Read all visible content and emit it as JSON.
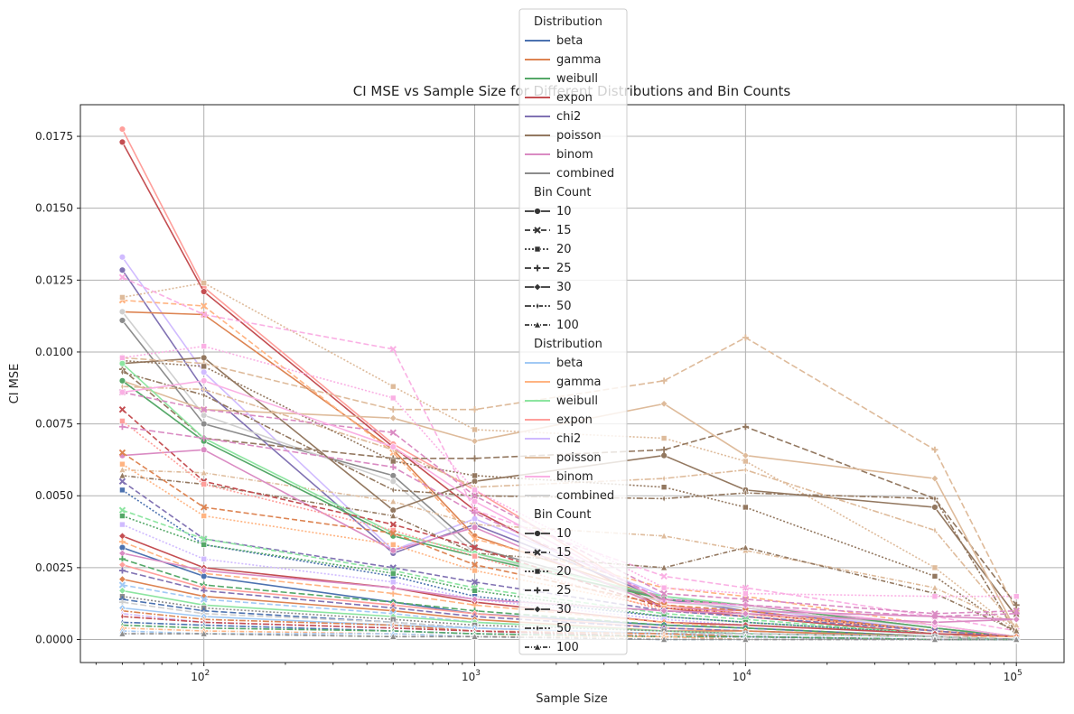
{
  "chart_data": {
    "type": "line",
    "title": "CI MSE vs Sample Size for Different Distributions and Bin Counts",
    "xlabel": "Sample Size",
    "ylabel": "CI MSE",
    "x_scale": "log",
    "xlim": [
      35,
      150000
    ],
    "ylim": [
      -0.0008,
      0.0186
    ],
    "grid": true,
    "legend_position": "top-center",
    "x_ticks": [
      {
        "value": 100,
        "label": "10",
        "exp": "2"
      },
      {
        "value": 1000,
        "label": "10",
        "exp": "3"
      },
      {
        "value": 10000,
        "label": "10",
        "exp": "4"
      },
      {
        "value": 100000,
        "label": "10",
        "exp": "5"
      }
    ],
    "y_ticks": [
      {
        "value": 0.0,
        "label": "0.0000"
      },
      {
        "value": 0.0025,
        "label": "0.0025"
      },
      {
        "value": 0.005,
        "label": "0.0050"
      },
      {
        "value": 0.0075,
        "label": "0.0075"
      },
      {
        "value": 0.01,
        "label": "0.0100"
      },
      {
        "value": 0.0125,
        "label": "0.0125"
      },
      {
        "value": 0.015,
        "label": "0.0150"
      },
      {
        "value": 0.0175,
        "label": "0.0175"
      }
    ],
    "x": [
      50,
      100,
      500,
      1000,
      5000,
      10000,
      50000,
      100000
    ],
    "legend": {
      "distribution_title_1": "Distribution",
      "bin_title_1": "Bin Count",
      "distribution_title_2": "Distribution",
      "bin_title_2": "Bin Count",
      "distributions": [
        "beta",
        "gamma",
        "weibull",
        "expon",
        "chi2",
        "poisson",
        "binom",
        "combined"
      ],
      "bin_counts": [
        "10",
        "15",
        "20",
        "25",
        "30",
        "50",
        "100"
      ]
    },
    "palettes": {
      "deep": [
        "#4c72b0",
        "#dd8452",
        "#55a868",
        "#c44e52",
        "#8172b3",
        "#937860",
        "#da8bc3",
        "#8c8c8c"
      ],
      "pastel": [
        "#a1c9f4",
        "#ffb482",
        "#8de5a1",
        "#ff9f9b",
        "#d0bbff",
        "#debb9b",
        "#fab0e4",
        "#cfcfcf"
      ]
    },
    "series": [
      {
        "distribution": "expon",
        "palette": "pastel",
        "bins": "10",
        "values": [
          0.01775,
          0.01225,
          0.0068,
          0.0052,
          0.0012,
          0.0009,
          0.0003,
          0.0001
        ]
      },
      {
        "distribution": "expon",
        "palette": "deep",
        "bins": "10",
        "values": [
          0.0173,
          0.0121,
          0.0067,
          0.0045,
          0.0011,
          0.0008,
          0.0002,
          0.0001
        ]
      },
      {
        "distribution": "chi2",
        "palette": "pastel",
        "bins": "10",
        "values": [
          0.0133,
          0.0093,
          0.0031,
          0.0042,
          0.0015,
          0.0011,
          0.0003,
          0.0001
        ]
      },
      {
        "distribution": "chi2",
        "palette": "deep",
        "bins": "10",
        "values": [
          0.01285,
          0.0087,
          0.003,
          0.004,
          0.0014,
          0.001,
          0.0003,
          0.0001
        ]
      },
      {
        "distribution": "gamma",
        "palette": "deep",
        "bins": "10",
        "values": [
          0.0114,
          0.0113,
          0.0066,
          0.0036,
          0.0014,
          0.0012,
          0.0004,
          0.0001
        ]
      },
      {
        "distribution": "gamma",
        "palette": "pastel",
        "bins": "15",
        "values": [
          0.0118,
          0.0116,
          0.0065,
          0.0035,
          0.0018,
          0.0015,
          0.0005,
          0.0001
        ]
      },
      {
        "distribution": "poisson",
        "palette": "pastel",
        "bins": "20",
        "values": [
          0.0119,
          0.0124,
          0.0088,
          0.0073,
          0.007,
          0.0062,
          0.0025,
          0.0003
        ]
      },
      {
        "distribution": "combined",
        "palette": "deep",
        "bins": "10",
        "values": [
          0.0111,
          0.0075,
          0.0057,
          0.0032,
          0.0014,
          0.0012,
          0.0004,
          0.0001
        ]
      },
      {
        "distribution": "combined",
        "palette": "pastel",
        "bins": "10",
        "values": [
          0.0114,
          0.0078,
          0.0055,
          0.003,
          0.0013,
          0.0011,
          0.0004,
          0.0001
        ]
      },
      {
        "distribution": "binom",
        "palette": "pastel",
        "bins": "15",
        "values": [
          0.0126,
          0.0113,
          0.0101,
          0.0045,
          0.0022,
          0.0018,
          0.0008,
          0.0003
        ]
      },
      {
        "distribution": "poisson",
        "palette": "deep",
        "bins": "10",
        "values": [
          0.0096,
          0.0098,
          0.0045,
          0.0055,
          0.0064,
          0.0052,
          0.0046,
          0.0008
        ]
      },
      {
        "distribution": "poisson",
        "palette": "pastel",
        "bins": "25",
        "values": [
          0.0098,
          0.0096,
          0.008,
          0.008,
          0.009,
          0.0105,
          0.0066,
          0.001
        ]
      },
      {
        "distribution": "poisson",
        "palette": "deep",
        "bins": "25",
        "values": [
          0.0094,
          0.007,
          0.0063,
          0.0063,
          0.0066,
          0.0074,
          0.0049,
          0.0012
        ]
      },
      {
        "distribution": "poisson",
        "palette": "pastel",
        "bins": "30",
        "values": [
          0.009,
          0.008,
          0.0077,
          0.0069,
          0.0082,
          0.0064,
          0.0056,
          0.0003
        ]
      },
      {
        "distribution": "poisson",
        "palette": "deep",
        "bins": "50",
        "values": [
          0.0093,
          0.0085,
          0.0052,
          0.005,
          0.0049,
          0.0051,
          0.0049,
          0.0002
        ]
      },
      {
        "distribution": "poisson",
        "palette": "pastel",
        "bins": "50",
        "values": [
          0.0088,
          0.0087,
          0.0066,
          0.0053,
          0.0056,
          0.0059,
          0.0038,
          0.0004
        ]
      },
      {
        "distribution": "poisson",
        "palette": "deep",
        "bins": "20",
        "values": [
          0.0097,
          0.0095,
          0.0062,
          0.0057,
          0.0053,
          0.0046,
          0.0022,
          0.0002
        ]
      },
      {
        "distribution": "poisson",
        "palette": "pastel",
        "bins": "100",
        "values": [
          0.0059,
          0.0058,
          0.0048,
          0.004,
          0.0036,
          0.0031,
          0.0018,
          0.0005
        ]
      },
      {
        "distribution": "poisson",
        "palette": "deep",
        "bins": "100",
        "values": [
          0.0057,
          0.0054,
          0.0043,
          0.003,
          0.0025,
          0.0032,
          0.0016,
          0.0003
        ]
      },
      {
        "distribution": "weibull",
        "palette": "pastel",
        "bins": "10",
        "values": [
          0.0096,
          0.007,
          0.0037,
          0.003,
          0.0015,
          0.0012,
          0.0005,
          0.0001
        ]
      },
      {
        "distribution": "weibull",
        "palette": "deep",
        "bins": "10",
        "values": [
          0.009,
          0.0069,
          0.0036,
          0.0029,
          0.0014,
          0.0012,
          0.0004,
          0.0001
        ]
      },
      {
        "distribution": "binom",
        "palette": "pastel",
        "bins": "20",
        "values": [
          0.0098,
          0.0102,
          0.0084,
          0.0052,
          0.0018,
          0.0016,
          0.0015,
          0.0015
        ]
      },
      {
        "distribution": "binom",
        "palette": "deep",
        "bins": "10",
        "values": [
          0.0064,
          0.0066,
          0.0031,
          0.0039,
          0.0011,
          0.001,
          0.0008,
          0.0007
        ]
      },
      {
        "distribution": "binom",
        "palette": "deep",
        "bins": "15",
        "values": [
          0.0086,
          0.008,
          0.0072,
          0.005,
          0.0016,
          0.0014,
          0.0009,
          0.001
        ]
      },
      {
        "distribution": "binom",
        "palette": "pastel",
        "bins": "10",
        "values": [
          0.0086,
          0.009,
          0.0067,
          0.0048,
          0.0013,
          0.0012,
          0.0005,
          0.0001
        ]
      },
      {
        "distribution": "expon",
        "palette": "deep",
        "bins": "15",
        "values": [
          0.008,
          0.0055,
          0.004,
          0.0032,
          0.0011,
          0.0009,
          0.0003,
          0.0001
        ]
      },
      {
        "distribution": "expon",
        "palette": "pastel",
        "bins": "20",
        "values": [
          0.0076,
          0.0054,
          0.0038,
          0.0029,
          0.001,
          0.0008,
          0.0003,
          0.0001
        ]
      },
      {
        "distribution": "binom",
        "palette": "deep",
        "bins": "25",
        "values": [
          0.0074,
          0.007,
          0.006,
          0.0044,
          0.0014,
          0.0012,
          0.0008,
          0.0009
        ]
      },
      {
        "distribution": "gamma",
        "palette": "deep",
        "bins": "15",
        "values": [
          0.0065,
          0.0046,
          0.0037,
          0.0026,
          0.0012,
          0.001,
          0.0003,
          0.0001
        ]
      },
      {
        "distribution": "gamma",
        "palette": "pastel",
        "bins": "20",
        "values": [
          0.0061,
          0.0043,
          0.0033,
          0.0024,
          0.0011,
          0.0009,
          0.0003,
          0.0001
        ]
      },
      {
        "distribution": "chi2",
        "palette": "deep",
        "bins": "15",
        "values": [
          0.0055,
          0.0035,
          0.0025,
          0.002,
          0.001,
          0.0008,
          0.0003,
          0.0001
        ]
      },
      {
        "distribution": "beta",
        "palette": "deep",
        "bins": "20",
        "values": [
          0.0052,
          0.0033,
          0.0022,
          0.0015,
          0.0008,
          0.0006,
          0.0002,
          0.0001
        ]
      },
      {
        "distribution": "weibull",
        "palette": "pastel",
        "bins": "15",
        "values": [
          0.0045,
          0.0035,
          0.0024,
          0.0018,
          0.0009,
          0.0007,
          0.0002,
          0.0001
        ]
      },
      {
        "distribution": "weibull",
        "palette": "deep",
        "bins": "20",
        "values": [
          0.0043,
          0.0033,
          0.0023,
          0.0017,
          0.0008,
          0.0006,
          0.0002,
          0.0001
        ]
      },
      {
        "distribution": "chi2",
        "palette": "pastel",
        "bins": "20",
        "values": [
          0.004,
          0.0028,
          0.002,
          0.0014,
          0.0007,
          0.0005,
          0.0002,
          0.0001
        ]
      },
      {
        "distribution": "expon",
        "palette": "deep",
        "bins": "30",
        "values": [
          0.0036,
          0.0025,
          0.0018,
          0.0013,
          0.0006,
          0.0005,
          0.0002,
          0.0001
        ]
      },
      {
        "distribution": "gamma",
        "palette": "pastel",
        "bins": "25",
        "values": [
          0.0034,
          0.0023,
          0.0016,
          0.0012,
          0.0006,
          0.0004,
          0.0001,
          0.0001
        ]
      },
      {
        "distribution": "beta",
        "palette": "deep",
        "bins": "10",
        "values": [
          0.0032,
          0.0022,
          0.0013,
          0.0009,
          0.0005,
          0.0004,
          0.0001,
          0.0
        ]
      },
      {
        "distribution": "binom",
        "palette": "deep",
        "bins": "30",
        "values": [
          0.003,
          0.0024,
          0.0018,
          0.0014,
          0.001,
          0.0009,
          0.0006,
          0.0007
        ]
      },
      {
        "distribution": "weibull",
        "palette": "deep",
        "bins": "25",
        "values": [
          0.0028,
          0.0019,
          0.0013,
          0.001,
          0.0005,
          0.0004,
          0.0001,
          0.0
        ]
      },
      {
        "distribution": "expon",
        "palette": "pastel",
        "bins": "30",
        "values": [
          0.0026,
          0.0018,
          0.0012,
          0.0009,
          0.0004,
          0.0003,
          0.0001,
          0.0
        ]
      },
      {
        "distribution": "chi2",
        "palette": "deep",
        "bins": "25",
        "values": [
          0.0024,
          0.0017,
          0.0011,
          0.0008,
          0.0004,
          0.0003,
          0.0001,
          0.0
        ]
      },
      {
        "distribution": "gamma",
        "palette": "deep",
        "bins": "30",
        "values": [
          0.0021,
          0.0015,
          0.001,
          0.0007,
          0.0003,
          0.0003,
          0.0001,
          0.0
        ]
      },
      {
        "distribution": "beta",
        "palette": "pastel",
        "bins": "15",
        "values": [
          0.0019,
          0.0014,
          0.0009,
          0.0006,
          0.0003,
          0.0002,
          0.0001,
          0.0
        ]
      },
      {
        "distribution": "weibull",
        "palette": "pastel",
        "bins": "30",
        "values": [
          0.0017,
          0.0012,
          0.0008,
          0.0006,
          0.0003,
          0.0002,
          0.0001,
          0.0
        ]
      },
      {
        "distribution": "combined",
        "palette": "deep",
        "bins": "20",
        "values": [
          0.0015,
          0.0011,
          0.0007,
          0.0005,
          0.0003,
          0.0002,
          0.0001,
          0.0
        ]
      },
      {
        "distribution": "beta",
        "palette": "deep",
        "bins": "25",
        "values": [
          0.0014,
          0.001,
          0.0006,
          0.0004,
          0.0002,
          0.0002,
          0.0001,
          0.0
        ]
      },
      {
        "distribution": "combined",
        "palette": "pastel",
        "bins": "25",
        "values": [
          0.0013,
          0.0009,
          0.0006,
          0.0004,
          0.0002,
          0.0002,
          0.0001,
          0.0
        ]
      },
      {
        "distribution": "beta",
        "palette": "pastel",
        "bins": "30",
        "values": [
          0.0011,
          0.0008,
          0.0005,
          0.0004,
          0.0002,
          0.0001,
          0.0,
          0.0
        ]
      },
      {
        "distribution": "gamma",
        "palette": "deep",
        "bins": "50",
        "values": [
          0.001,
          0.0007,
          0.0005,
          0.0003,
          0.0002,
          0.0001,
          0.0,
          0.0
        ]
      },
      {
        "distribution": "chi2",
        "palette": "pastel",
        "bins": "50",
        "values": [
          0.0009,
          0.0006,
          0.0004,
          0.0003,
          0.0001,
          0.0001,
          0.0,
          0.0
        ]
      },
      {
        "distribution": "expon",
        "palette": "deep",
        "bins": "50",
        "values": [
          0.0008,
          0.0006,
          0.0004,
          0.0003,
          0.0001,
          0.0001,
          0.0,
          0.0
        ]
      },
      {
        "distribution": "beta",
        "palette": "deep",
        "bins": "50",
        "values": [
          0.0006,
          0.0005,
          0.0003,
          0.0002,
          0.0001,
          0.0001,
          0.0,
          0.0
        ]
      },
      {
        "distribution": "weibull",
        "palette": "deep",
        "bins": "50",
        "values": [
          0.0005,
          0.0004,
          0.0003,
          0.0002,
          0.0001,
          0.0001,
          0.0,
          0.0
        ]
      },
      {
        "distribution": "gamma",
        "palette": "pastel",
        "bins": "100",
        "values": [
          0.0004,
          0.0003,
          0.0002,
          0.0001,
          0.0001,
          0.0,
          0.0,
          0.0
        ]
      },
      {
        "distribution": "beta",
        "palette": "pastel",
        "bins": "100",
        "values": [
          0.0003,
          0.0002,
          0.0002,
          0.0001,
          0.0,
          0.0,
          0.0,
          0.0
        ]
      },
      {
        "distribution": "combined",
        "palette": "deep",
        "bins": "100",
        "values": [
          0.0002,
          0.0002,
          0.0001,
          0.0001,
          0.0,
          0.0,
          0.0,
          0.0
        ]
      }
    ]
  }
}
